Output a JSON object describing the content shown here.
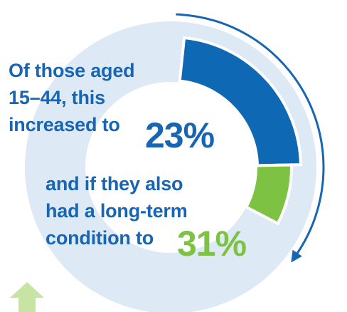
{
  "text": {
    "line1": "Of those aged",
    "line2": "15–44, this",
    "line3": "increased to",
    "big_value_1": "23%",
    "line4": "and if they also",
    "line5": "had a long-term",
    "line6": "condition to",
    "big_value_2": "31%"
  },
  "chart_data": {
    "type": "pie",
    "title": "",
    "series": [
      {
        "name": "",
        "value": 23,
        "color": "#0f68b4"
      },
      {
        "name": "",
        "value": 8,
        "color": "#7dc243"
      }
    ],
    "total": 100,
    "background_ring_color": "#dde9f5",
    "start_angle_deg": 6,
    "arrow_color": "#1765b3",
    "bottom_arrow_color": "#c7e4a4"
  }
}
